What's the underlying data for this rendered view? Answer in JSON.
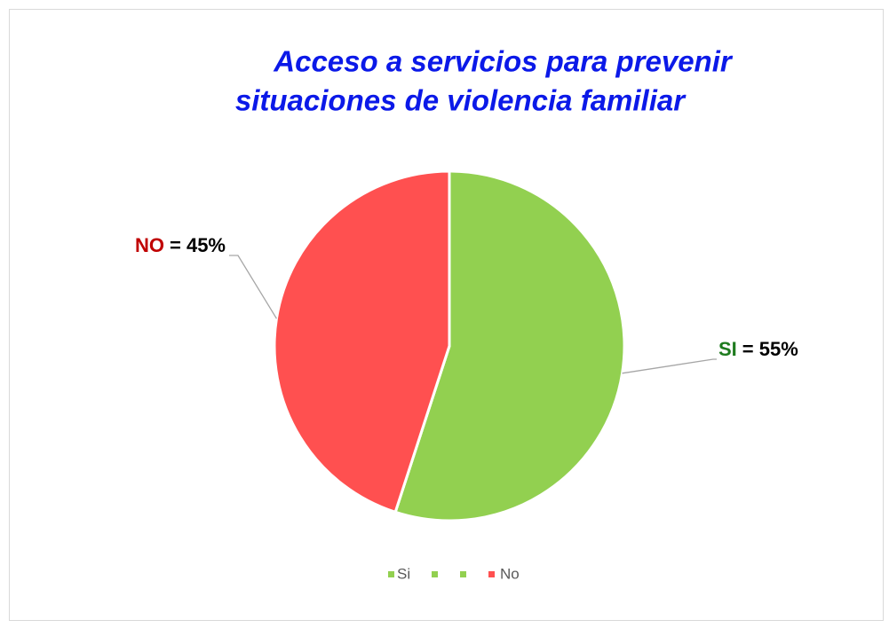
{
  "chart_data": {
    "type": "pie",
    "title": [
      "Acceso a servicios para prevenir",
      "situaciones de violencia familiar"
    ],
    "categories": [
      "Si",
      null,
      null,
      "No"
    ],
    "values": [
      55,
      0,
      0,
      45
    ],
    "colors": [
      "#92d050",
      "#92d050",
      "#92d050",
      "#ff5050"
    ],
    "label_names": [
      "SI",
      null,
      null,
      "NO"
    ],
    "label_name_colors": [
      "#1e7b1e",
      null,
      null,
      "#c00000"
    ],
    "value_labels": [
      "= 55%",
      null,
      null,
      "= 45%"
    ],
    "legend": "bottom"
  }
}
